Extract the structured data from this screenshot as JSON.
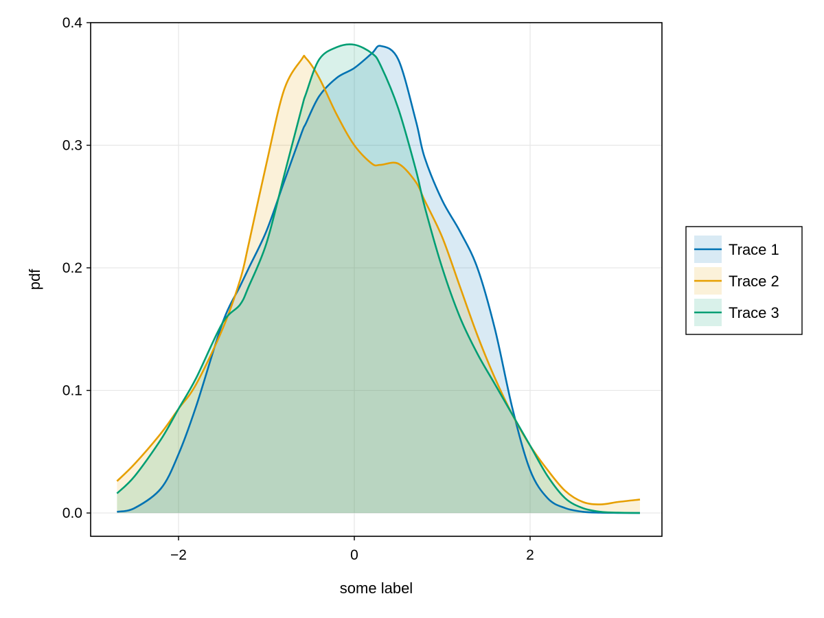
{
  "chart_data": {
    "type": "area",
    "title": "",
    "xlabel": "some label",
    "ylabel": "pdf",
    "xlim": [
      -3.0,
      3.5
    ],
    "ylim": [
      -0.019,
      0.4
    ],
    "xticks": [
      -2,
      0,
      2
    ],
    "xtick_labels": [
      "−2",
      "0",
      "2"
    ],
    "yticks": [
      0.0,
      0.1,
      0.2,
      0.3,
      0.4
    ],
    "ytick_labels": [
      "0.0",
      "0.1",
      "0.2",
      "0.3",
      "0.4"
    ],
    "grid": true,
    "legend_position": "right",
    "x": [
      -2.7,
      -2.5,
      -2.2,
      -2.0,
      -1.8,
      -1.5,
      -1.3,
      -1.2,
      -1.0,
      -0.8,
      -0.6,
      -0.55,
      -0.4,
      -0.2,
      0.0,
      0.2,
      0.3,
      0.5,
      0.7,
      0.8,
      1.0,
      1.2,
      1.4,
      1.6,
      1.8,
      2.0,
      2.2,
      2.4,
      2.6,
      2.8,
      3.0,
      3.25
    ],
    "series": [
      {
        "name": "Trace 1",
        "color": "#0072B2",
        "values": [
          0.001,
          0.004,
          0.02,
          0.048,
          0.087,
          0.155,
          0.185,
          0.2,
          0.23,
          0.27,
          0.31,
          0.318,
          0.34,
          0.355,
          0.363,
          0.375,
          0.381,
          0.37,
          0.32,
          0.29,
          0.255,
          0.23,
          0.2,
          0.15,
          0.085,
          0.035,
          0.012,
          0.004,
          0.001,
          0.0003,
          0.0001,
          0.0
        ]
      },
      {
        "name": "Trace 2",
        "color": "#E69F00",
        "values": [
          0.026,
          0.04,
          0.065,
          0.085,
          0.105,
          0.15,
          0.19,
          0.22,
          0.285,
          0.345,
          0.37,
          0.371,
          0.355,
          0.325,
          0.3,
          0.285,
          0.284,
          0.285,
          0.27,
          0.255,
          0.225,
          0.185,
          0.145,
          0.11,
          0.08,
          0.055,
          0.035,
          0.018,
          0.009,
          0.007,
          0.009,
          0.011
        ]
      },
      {
        "name": "Trace 3",
        "color": "#009E73",
        "values": [
          0.016,
          0.03,
          0.06,
          0.085,
          0.11,
          0.155,
          0.17,
          0.185,
          0.22,
          0.275,
          0.33,
          0.342,
          0.37,
          0.38,
          0.382,
          0.375,
          0.365,
          0.33,
          0.28,
          0.25,
          0.2,
          0.16,
          0.13,
          0.105,
          0.08,
          0.055,
          0.03,
          0.012,
          0.004,
          0.001,
          0.0003,
          0.0
        ]
      }
    ]
  }
}
